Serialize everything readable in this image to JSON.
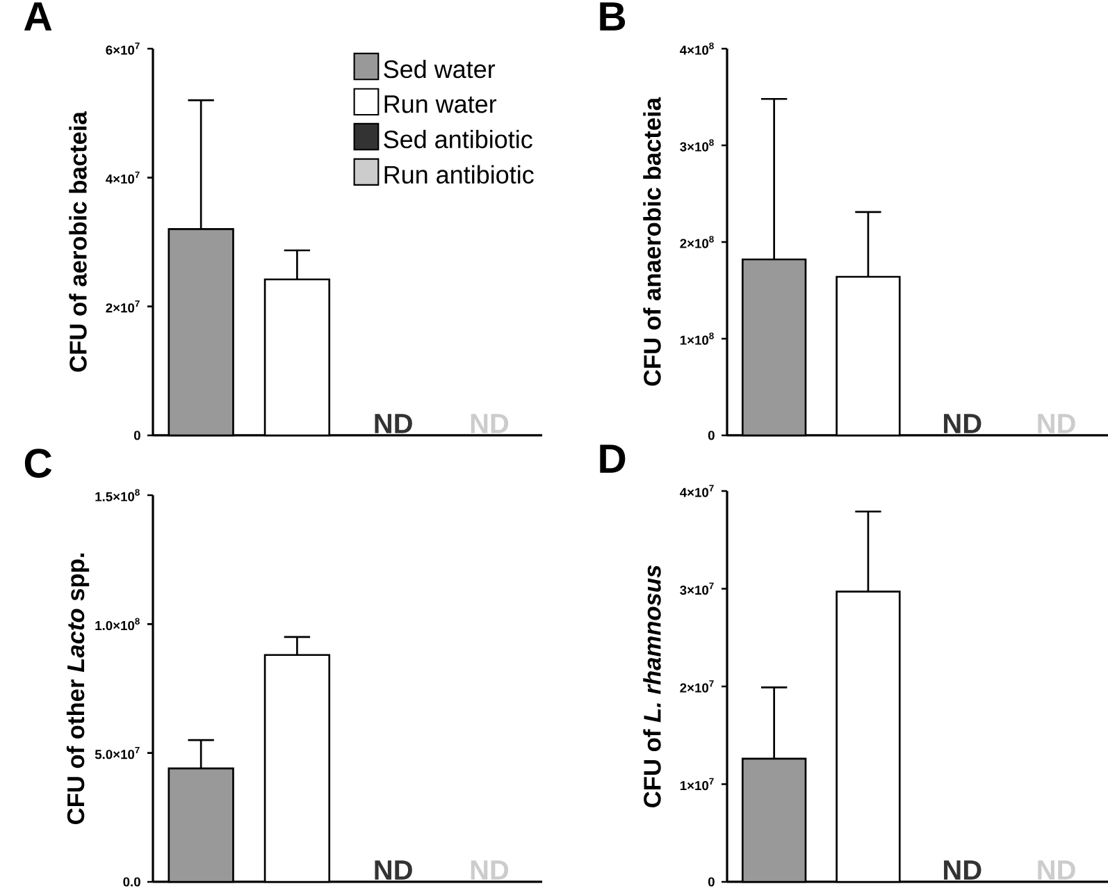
{
  "chart_data": [
    {
      "type": "bar",
      "title": "A",
      "ylabel": "CFU of aerobic bacteia",
      "categories": [
        null,
        null,
        null,
        null
      ],
      "ylim": [
        0,
        60000000
      ],
      "yticks": [
        0,
        {
          "value": 20000000,
          "label": "2×10$^{7}$"
        },
        {
          "value": 40000000,
          "label": "4×10$^{7}$"
        },
        {
          "value": 60000000,
          "label": "6×10$^{7}$"
        }
      ],
      "legend": "top right",
      "series": [
        {
          "name": "Sed water",
          "color": "#999999",
          "values": [
            32000000,
            null,
            null,
            null
          ],
          "errors": [
            20000000,
            null,
            null,
            null
          ]
        },
        {
          "name": "Run water",
          "color": "#ffffff",
          "values": [
            null,
            24200000,
            null,
            null
          ],
          "errors": [
            null,
            4500000,
            null,
            null
          ]
        },
        {
          "name": "Sed antibiotic",
          "color": "#333333",
          "values": [
            null,
            null,
            null,
            null
          ],
          "value_labels": [
            null,
            null,
            "ND",
            null
          ]
        },
        {
          "name": "Run antibiotic",
          "color": "#cccccc",
          "values": [
            null,
            null,
            null,
            null
          ],
          "value_labels": [
            null,
            null,
            null,
            "ND"
          ]
        }
      ]
    },
    {
      "type": "bar",
      "title": "B",
      "ylabel": "CFU of anaerobic bacteia",
      "categories": [
        null,
        null,
        null,
        null
      ],
      "ylim": [
        0,
        400000000
      ],
      "yticks": [
        0,
        {
          "value": 100000000,
          "label": "1×10$^{8}$"
        },
        {
          "value": 200000000,
          "label": "2×10$^{8}$"
        },
        {
          "value": 300000000,
          "label": "3×10$^{8}$"
        },
        {
          "value": 400000000,
          "label": "4×10$^{8}$"
        }
      ],
      "series": [
        {
          "color": "#999999",
          "values": [
            182000000,
            null,
            null,
            null
          ],
          "errors": [
            166000000,
            null,
            null,
            null
          ]
        },
        {
          "color": "#ffffff",
          "values": [
            null,
            164000000,
            null,
            null
          ],
          "errors": [
            null,
            67000000,
            null,
            null
          ]
        },
        {
          "color": "#333333",
          "values": [
            null,
            null,
            null,
            null
          ],
          "value_labels": [
            null,
            null,
            "ND",
            null
          ]
        },
        {
          "color": "#cccccc",
          "values": [
            null,
            null,
            null,
            null
          ],
          "value_labels": [
            null,
            null,
            null,
            "ND"
          ]
        }
      ]
    },
    {
      "type": "bar",
      "title": "C",
      "ylabel": "CFU of other *Lacto* spp.",
      "categories": [
        null,
        null,
        null,
        null
      ],
      "ylim": [
        0,
        150000000
      ],
      "yticks": [
        {
          "value": 0,
          "label": "0.0"
        },
        {
          "value": 50000000,
          "label": "5.0×10$^{7}$"
        },
        {
          "value": 100000000,
          "label": "1.0×10$^{8}$"
        },
        {
          "value": 150000000,
          "label": "1.5×10$^{8}$"
        }
      ],
      "series": [
        {
          "color": "#999999",
          "values": [
            44000000,
            null,
            null,
            null
          ],
          "errors": [
            11000000,
            null,
            null,
            null
          ]
        },
        {
          "color": "#ffffff",
          "values": [
            null,
            88000000,
            null,
            null
          ],
          "errors": [
            null,
            7000000,
            null,
            null
          ]
        },
        {
          "color": "#333333",
          "values": [
            null,
            null,
            null,
            null
          ],
          "value_labels": [
            null,
            null,
            "ND",
            null
          ]
        },
        {
          "color": "#cccccc",
          "values": [
            null,
            null,
            null,
            null
          ],
          "value_labels": [
            null,
            null,
            null,
            "ND"
          ]
        }
      ]
    },
    {
      "type": "bar",
      "title": "D",
      "ylabel": "CFU of *L. rhamnosus*",
      "categories": [
        null,
        null,
        null,
        null
      ],
      "ylim": [
        0,
        40000000
      ],
      "yticks": [
        0,
        {
          "value": 10000000,
          "label": "1×10$^{7}$"
        },
        {
          "value": 20000000,
          "label": "2×10$^{7}$"
        },
        {
          "value": 30000000,
          "label": "3×10$^{7}$"
        },
        {
          "value": 40000000,
          "label": "4×10$^{7}$"
        }
      ],
      "series": [
        {
          "color": "#999999",
          "values": [
            12600000,
            null,
            null,
            null
          ],
          "errors": [
            7300000,
            null,
            null,
            null
          ]
        },
        {
          "color": "#ffffff",
          "values": [
            null,
            29700000,
            null,
            null
          ],
          "errors": [
            null,
            8200000,
            null,
            null
          ]
        },
        {
          "color": "#333333",
          "values": [
            null,
            null,
            null,
            null
          ],
          "value_labels": [
            null,
            null,
            "ND",
            null
          ]
        },
        {
          "color": "#cccccc",
          "values": [
            null,
            null,
            null,
            null
          ],
          "value_labels": [
            null,
            null,
            null,
            "ND"
          ]
        }
      ]
    }
  ]
}
